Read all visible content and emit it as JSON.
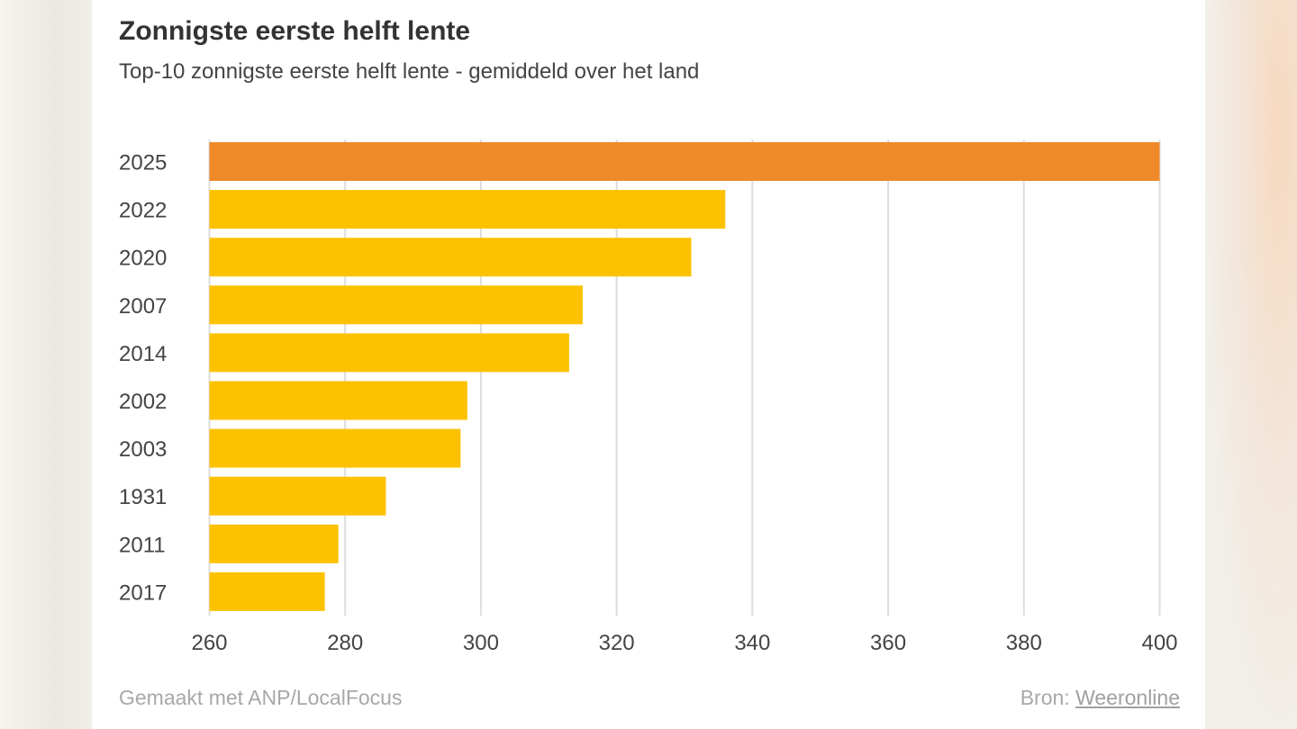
{
  "title": "Zonnigste eerste helft lente",
  "subtitle": "Top-10 zonnigste eerste helft lente - gemiddeld over het land",
  "footer": {
    "credit": "Gemaakt met ANP/LocalFocus",
    "source_prefix": "Bron:",
    "source_link": "Weeronline"
  },
  "colors": {
    "highlight": "#f0892a",
    "bar": "#fcc200",
    "grid": "#dddddd"
  },
  "chart_data": {
    "type": "bar",
    "orientation": "horizontal",
    "categories": [
      "2025",
      "2022",
      "2020",
      "2007",
      "2014",
      "2002",
      "2003",
      "1931",
      "2011",
      "2017"
    ],
    "values": [
      400,
      336,
      331,
      315,
      313,
      298,
      297,
      286,
      279,
      277
    ],
    "highlight_category": "2025",
    "xlim": [
      260,
      400
    ],
    "xticks": [
      260,
      280,
      300,
      320,
      340,
      360,
      380,
      400
    ],
    "grid": "vertical",
    "legend": "none"
  }
}
